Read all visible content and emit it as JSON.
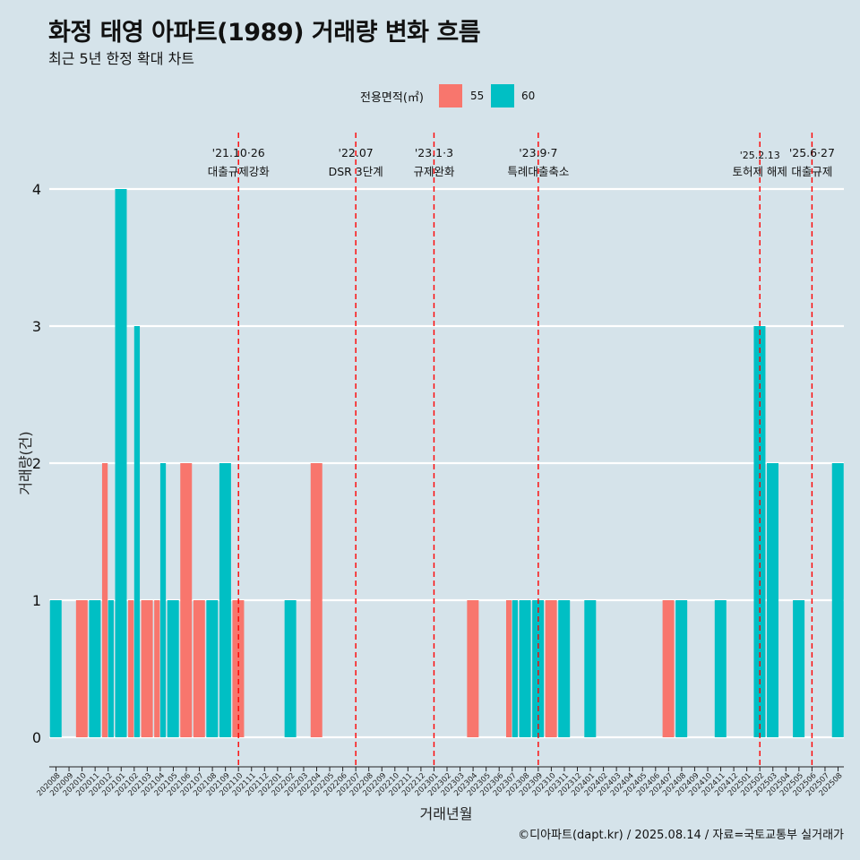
{
  "title": "화정 태영 아파트(1989) 거래량 변화 흐름",
  "subtitle": "최근 5년 한정 확대 차트",
  "caption": "©디아파트(dapt.kr) / 2025.08.14 / 자료=국토교통부 실거래가",
  "legend": {
    "title": "전용면적(㎡)",
    "items": [
      {
        "label": "55",
        "color": "#F8766D"
      },
      {
        "label": "60",
        "color": "#00BFC4"
      }
    ]
  },
  "chart_data": {
    "type": "bar",
    "xlabel": "거래년월",
    "ylabel": "거래량(건)",
    "ylim": [
      0,
      4
    ],
    "yticks": [
      0,
      1,
      2,
      3,
      4
    ],
    "grid": true,
    "legend_position": "top",
    "months": [
      "202008",
      "202009",
      "202010",
      "202011",
      "202012",
      "202101",
      "202102",
      "202103",
      "202104",
      "202105",
      "202106",
      "202107",
      "202108",
      "202109",
      "202110",
      "202111",
      "202112",
      "202201",
      "202202",
      "202203",
      "202204",
      "202205",
      "202206",
      "202207",
      "202208",
      "202209",
      "202210",
      "202211",
      "202212",
      "202301",
      "202302",
      "202303",
      "202304",
      "202305",
      "202306",
      "202307",
      "202308",
      "202309",
      "202310",
      "202311",
      "202312",
      "202401",
      "202402",
      "202403",
      "202404",
      "202405",
      "202406",
      "202407",
      "202408",
      "202409",
      "202410",
      "202411",
      "202412",
      "202501",
      "202502",
      "202503",
      "202504",
      "202505",
      "202506",
      "202507",
      "202508"
    ],
    "series": [
      {
        "name": "55",
        "color": "#F8766D",
        "points": [
          {
            "x": "202010",
            "y": 1
          },
          {
            "x": "202012",
            "y": 2
          },
          {
            "x": "202102",
            "y": 1
          },
          {
            "x": "202103",
            "y": 1
          },
          {
            "x": "202104",
            "y": 1
          },
          {
            "x": "202106",
            "y": 2
          },
          {
            "x": "202107",
            "y": 1
          },
          {
            "x": "202110",
            "y": 1
          },
          {
            "x": "202204",
            "y": 2
          },
          {
            "x": "202304",
            "y": 1
          },
          {
            "x": "202307",
            "y": 1
          },
          {
            "x": "202310",
            "y": 1
          },
          {
            "x": "202407",
            "y": 1
          }
        ]
      },
      {
        "name": "60",
        "color": "#00BFC4",
        "points": [
          {
            "x": "202008",
            "y": 1
          },
          {
            "x": "202011",
            "y": 1
          },
          {
            "x": "202012",
            "y": 1
          },
          {
            "x": "202101",
            "y": 4
          },
          {
            "x": "202102",
            "y": 3
          },
          {
            "x": "202104",
            "y": 2
          },
          {
            "x": "202105",
            "y": 1
          },
          {
            "x": "202108",
            "y": 1
          },
          {
            "x": "202109",
            "y": 2
          },
          {
            "x": "202202",
            "y": 1
          },
          {
            "x": "202307",
            "y": 1
          },
          {
            "x": "202308",
            "y": 1
          },
          {
            "x": "202309",
            "y": 1
          },
          {
            "x": "202311",
            "y": 1
          },
          {
            "x": "202401",
            "y": 1
          },
          {
            "x": "202408",
            "y": 1
          },
          {
            "x": "202411",
            "y": 1
          },
          {
            "x": "202502",
            "y": 3
          },
          {
            "x": "202503",
            "y": 2
          },
          {
            "x": "202505",
            "y": 1
          },
          {
            "x": "202508",
            "y": 2
          }
        ]
      }
    ],
    "annotations": [
      {
        "x": "202110",
        "line1": "'21.10·26",
        "line2": "대출규제강화"
      },
      {
        "x": "202207",
        "line1": "'22.07",
        "line2": "DSR 3단계"
      },
      {
        "x": "202301",
        "line1": "'23.1·3",
        "line2": "규제완화"
      },
      {
        "x": "202309",
        "line1": "'23.9·7",
        "line2": "특례대출축소"
      },
      {
        "x": "202502",
        "line1": "'25.2.13",
        "line2": "토허제 해제"
      },
      {
        "x": "202506",
        "line1": "'25.6·27",
        "line2": "대출규제"
      }
    ]
  }
}
